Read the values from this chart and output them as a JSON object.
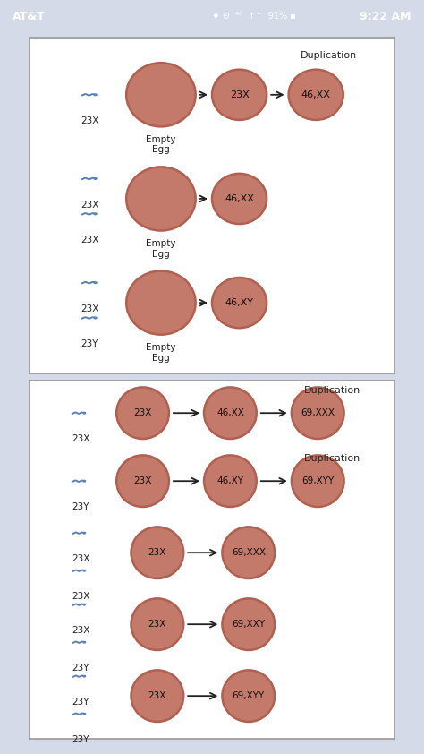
{
  "bg_color": "#d4dae8",
  "panel_bg": "#ffffff",
  "status_bar_color": "#3d5a96",
  "circle_fill": "#c47a6a",
  "circle_edge": "#b06050",
  "sperm_body_color": "#5b7fb5",
  "sperm_head_color": "#8aaad0",
  "arrow_color": "#222222",
  "text_color": "#222222",
  "top_rows": [
    {
      "sperm": [
        "23X"
      ],
      "egg": true,
      "egg_label": "Empty\nEgg",
      "circles": [
        "23X",
        "46,XX"
      ],
      "dup": true
    },
    {
      "sperm": [
        "23X",
        "23X"
      ],
      "egg": true,
      "egg_label": "Empty\nEgg",
      "circles": [
        "46,XX"
      ],
      "dup": false
    },
    {
      "sperm": [
        "23X",
        "23Y"
      ],
      "egg": true,
      "egg_label": "Empty\nEgg",
      "circles": [
        "46,XY"
      ],
      "dup": false
    }
  ],
  "bot_rows": [
    {
      "sperm": [
        "23X"
      ],
      "circles": [
        "23X",
        "46,XX",
        "69,XXX"
      ],
      "dup": true,
      "dup2": false
    },
    {
      "sperm": [
        "23Y"
      ],
      "circles": [
        "23X",
        "46,XY",
        "69,XYY"
      ],
      "dup": false,
      "dup2": true
    },
    {
      "sperm": [
        "23X",
        "23X"
      ],
      "circles": [
        "23X",
        "69,XXX"
      ],
      "dup": false,
      "dup2": false
    },
    {
      "sperm": [
        "23X",
        "23Y"
      ],
      "circles": [
        "23X",
        "69,XXY"
      ],
      "dup": false,
      "dup2": false
    },
    {
      "sperm": [
        "23Y",
        "23Y"
      ],
      "circles": [
        "23X",
        "69,XYY"
      ],
      "dup": false,
      "dup2": false
    }
  ]
}
